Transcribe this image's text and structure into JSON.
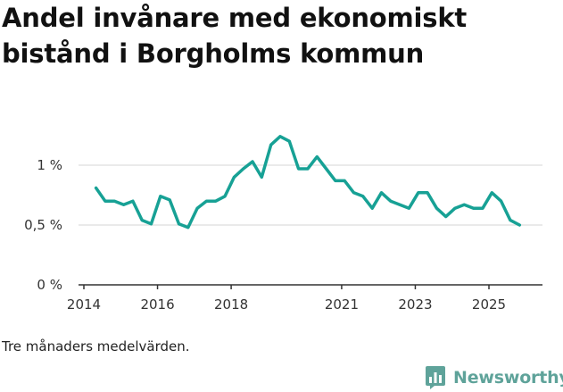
{
  "title": "Andel invånare med ekonomiskt bistånd i Borgholms kommun",
  "note": "Tre månaders medelvärden.",
  "brand": {
    "name": "Newsworthy",
    "icon": "newsworthy-logo-icon"
  },
  "colors": {
    "line": "#17a195",
    "grid": "#e3e3e3",
    "axis": "#333333",
    "brand": "#5fa39a"
  },
  "chart_data": {
    "type": "line",
    "title": "Andel invånare med ekonomiskt bistånd i Borgholms kommun",
    "xlabel": "",
    "ylabel": "",
    "xlim": [
      2013.8,
      2026.5
    ],
    "ylim": [
      0,
      1.3
    ],
    "grid": true,
    "legend": "none",
    "y_ticks": [
      {
        "value": 0,
        "label": "0 %"
      },
      {
        "value": 0.5,
        "label": "0,5 %"
      },
      {
        "value": 1,
        "label": "1 %"
      }
    ],
    "x_ticks": [
      {
        "value": 2014,
        "label": "2014"
      },
      {
        "value": 2016,
        "label": "2016"
      },
      {
        "value": 2018,
        "label": "2018"
      },
      {
        "value": 2021,
        "label": "2021"
      },
      {
        "value": 2023,
        "label": "2023"
      },
      {
        "value": 2025,
        "label": "2025"
      }
    ],
    "series": [
      {
        "name": "Andel invånare med ekonomiskt bistånd",
        "x": [
          2014.33,
          2014.58,
          2014.83,
          2015.08,
          2015.33,
          2015.58,
          2015.83,
          2016.08,
          2016.33,
          2016.58,
          2016.83,
          2017.08,
          2017.33,
          2017.58,
          2017.83,
          2018.08,
          2018.33,
          2018.58,
          2018.83,
          2019.08,
          2019.33,
          2019.58,
          2019.83,
          2020.08,
          2020.33,
          2020.58,
          2020.83,
          2021.08,
          2021.33,
          2021.58,
          2021.83,
          2022.08,
          2022.33,
          2022.58,
          2022.83,
          2023.08,
          2023.33,
          2023.58,
          2023.83,
          2024.08,
          2024.33,
          2024.58,
          2024.83,
          2025.08,
          2025.33,
          2025.58,
          2025.83
        ],
        "values": [
          0.81,
          0.7,
          0.7,
          0.67,
          0.7,
          0.54,
          0.51,
          0.74,
          0.71,
          0.51,
          0.48,
          0.64,
          0.7,
          0.7,
          0.74,
          0.9,
          0.97,
          1.03,
          0.9,
          1.17,
          1.24,
          1.2,
          0.97,
          0.97,
          1.07,
          0.97,
          0.87,
          0.87,
          0.77,
          0.74,
          0.64,
          0.77,
          0.7,
          0.67,
          0.64,
          0.77,
          0.77,
          0.64,
          0.57,
          0.64,
          0.67,
          0.64,
          0.64,
          0.77,
          0.7,
          0.54,
          0.5
        ]
      }
    ]
  }
}
